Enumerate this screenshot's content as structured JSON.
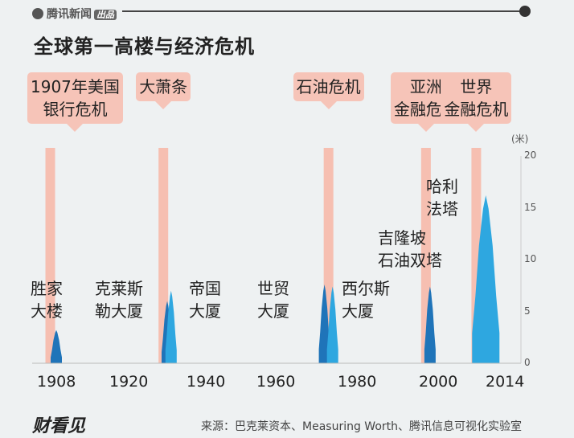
{
  "brand": {
    "logo_text": "腾讯新闻",
    "logo_tag": "出品"
  },
  "title": "全球第一高楼与经济危机",
  "chart_data": {
    "type": "bar",
    "title": "全球第一高楼与经济危机",
    "y_unit": "(米)",
    "y_ticks": [
      "20",
      "15",
      "10",
      "5",
      "0"
    ],
    "ylim": [
      0,
      20
    ],
    "x_ticks": [
      "1908",
      "1920",
      "1940",
      "1960",
      "1980",
      "2000",
      "2014"
    ],
    "crises": [
      {
        "label_lines": [
          "1907年美国",
          "银行危机"
        ],
        "year": 1907
      },
      {
        "label_lines": [
          "大萧条"
        ],
        "year": 1929
      },
      {
        "label_lines": [
          "石油危机"
        ],
        "year": 1973
      },
      {
        "label_lines": [
          "亚洲",
          "金融危机"
        ],
        "year": 1997
      },
      {
        "label_lines": [
          "世界",
          "金融危机"
        ],
        "year": 2008
      }
    ],
    "buildings": [
      {
        "name_lines": [
          "胜家",
          "大楼"
        ],
        "year": 1908,
        "height": 3.2,
        "color": "#1f74b9"
      },
      {
        "name_lines": [
          "克莱斯",
          "勒大厦"
        ],
        "year": 1930,
        "height": 6.0,
        "color": "#1f74b9"
      },
      {
        "name_lines": [
          "帝国",
          "大厦"
        ],
        "year": 1931,
        "height": 7.0,
        "color": "#2ea7e0"
      },
      {
        "name_lines": [
          "世贸",
          "大厦"
        ],
        "year": 1972,
        "height": 7.6,
        "color": "#1f74b9"
      },
      {
        "name_lines": [
          "西尔斯",
          "大厦"
        ],
        "year": 1974,
        "height": 7.4,
        "color": "#2ea7e0"
      },
      {
        "name_lines": [
          "吉隆坡",
          "石油双塔"
        ],
        "year": 1998,
        "height": 7.4,
        "color": "#1f74b9"
      },
      {
        "name_lines": [
          "哈利",
          "法塔"
        ],
        "year": 2010,
        "height": 16.2,
        "color": "#2ea7e0"
      }
    ]
  },
  "footer": {
    "logo_text": "财看见",
    "source": "来源：巴克莱资本、Measuring Worth、腾讯信息可视化实验室"
  }
}
